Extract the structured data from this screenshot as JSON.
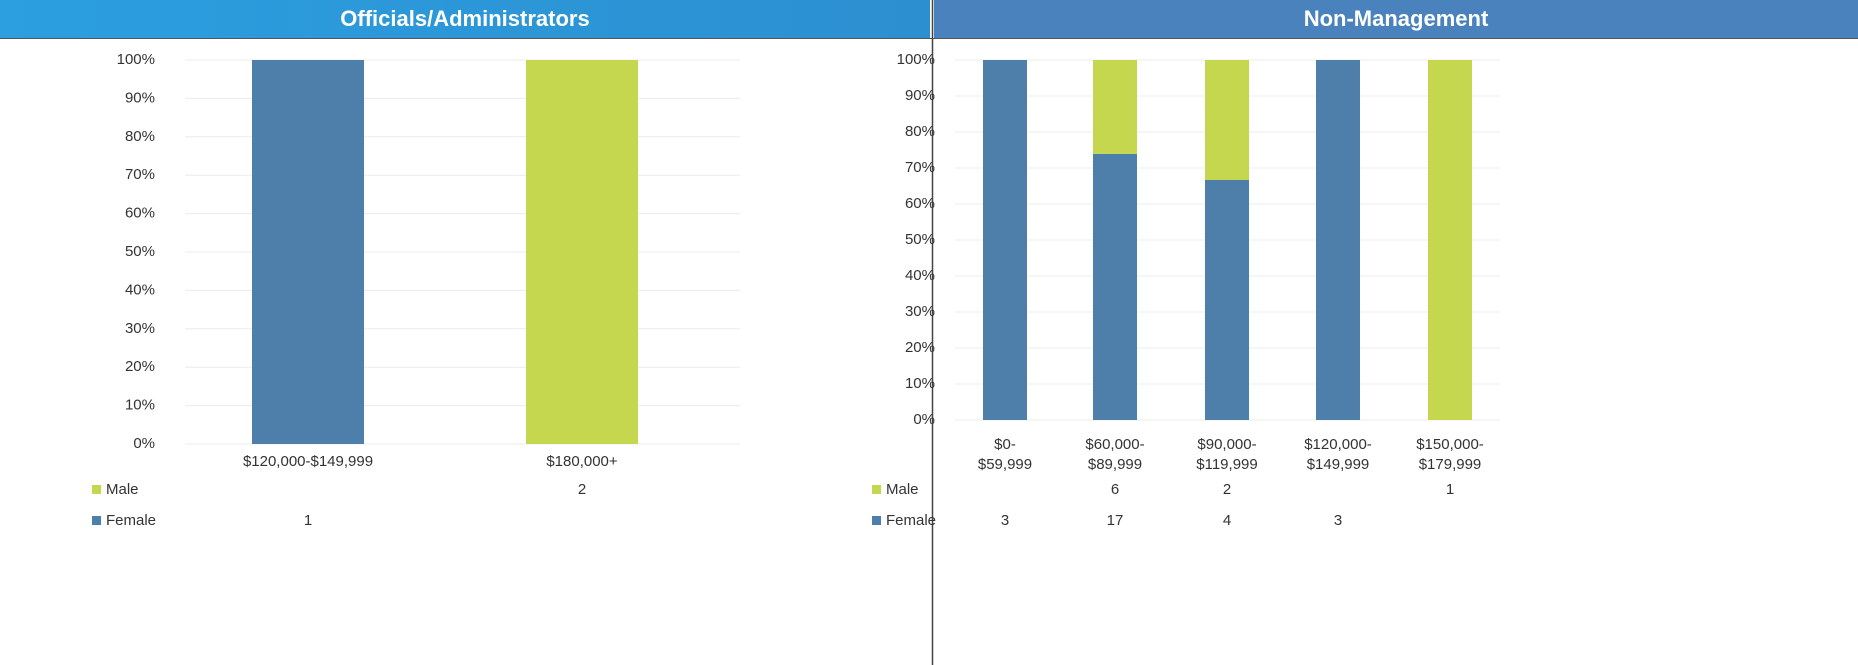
{
  "chart_data": [
    {
      "type": "bar",
      "stack": "percent",
      "title": "Officials/Administrators",
      "categories": [
        "$120,000-$149,999",
        "$180,000+"
      ],
      "series": [
        {
          "name": "Male",
          "color": "#c5d64f",
          "values": [
            null,
            2
          ]
        },
        {
          "name": "Female",
          "color": "#4e7fab",
          "values": [
            1,
            null
          ]
        }
      ],
      "ylim": [
        0,
        100
      ],
      "yticks": [
        {
          "value": 0,
          "label": "0%"
        },
        {
          "value": 10,
          "label": "10%"
        },
        {
          "value": 20,
          "label": "20%"
        },
        {
          "value": 30,
          "label": "30%"
        },
        {
          "value": 40,
          "label": "40%"
        },
        {
          "value": 50,
          "label": "50%"
        },
        {
          "value": 60,
          "label": "60%"
        },
        {
          "value": 70,
          "label": "70%"
        },
        {
          "value": 80,
          "label": "80%"
        },
        {
          "value": 90,
          "label": "90%"
        },
        {
          "value": 100,
          "label": "100%"
        }
      ],
      "grid": true
    },
    {
      "type": "bar",
      "stack": "percent",
      "title": "Non-Management",
      "categories": [
        "$0-$59,999",
        "$60,000-$89,999",
        "$90,000-$119,999",
        "$120,000-$149,999",
        "$150,000-$179,999"
      ],
      "series": [
        {
          "name": "Male",
          "color": "#c5d64f",
          "values": [
            null,
            6,
            2,
            null,
            1
          ]
        },
        {
          "name": "Female",
          "color": "#4e7fab",
          "values": [
            3,
            17,
            4,
            3,
            null
          ]
        }
      ],
      "ylim": [
        0,
        100
      ],
      "yticks": [
        {
          "value": 0,
          "label": "0%"
        },
        {
          "value": 10,
          "label": "10%"
        },
        {
          "value": 20,
          "label": "20%"
        },
        {
          "value": 30,
          "label": "30%"
        },
        {
          "value": 40,
          "label": "40%"
        },
        {
          "value": 50,
          "label": "50%"
        },
        {
          "value": 60,
          "label": "60%"
        },
        {
          "value": 70,
          "label": "70%"
        },
        {
          "value": 80,
          "label": "80%"
        },
        {
          "value": 90,
          "label": "90%"
        },
        {
          "value": 100,
          "label": "100%"
        }
      ],
      "grid": true
    }
  ]
}
